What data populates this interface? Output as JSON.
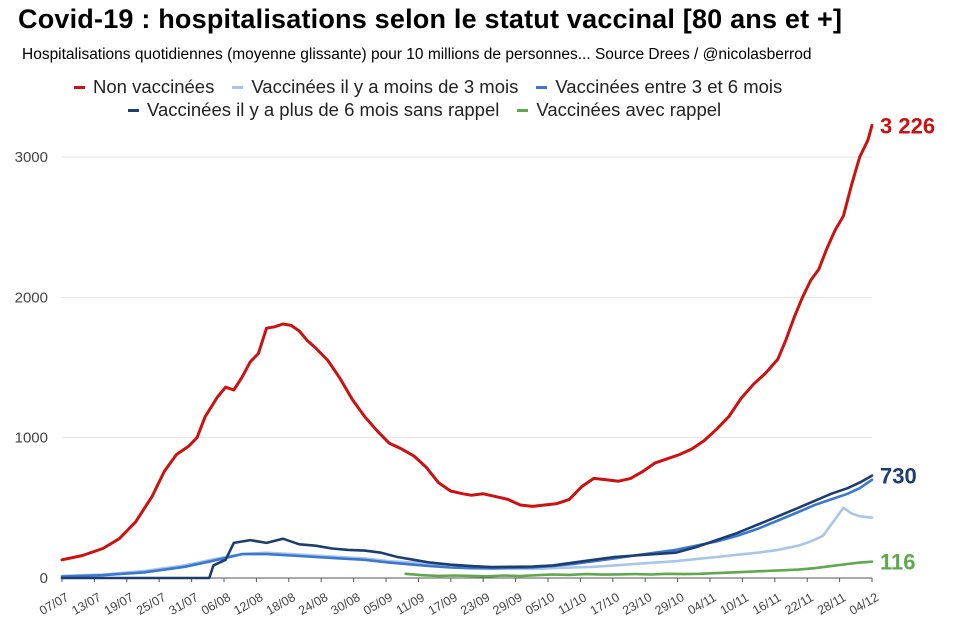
{
  "colors": {
    "non_vaccinees": "#cc1111",
    "vacc_moins_3_mois": "#a9c6ea",
    "vacc_3_6_mois": "#3a78d0",
    "vacc_plus_6_sans_rappel": "#1d3d70",
    "vacc_avec_rappel": "#5fa84d",
    "grid": "#e3e3e3",
    "axis": "#555555"
  },
  "chart_data": {
    "type": "line",
    "title": "Covid-19 : hospitalisations selon le statut vaccinal [80 ans et +]",
    "subtitle": "Hospitalisations quotidiennes (moyenne glissante) pour 10 millions de personnes... Source Drees / @nicolasberrod",
    "xlabel": "",
    "ylabel": "",
    "ylim": [
      0,
      3200
    ],
    "yticks": [
      "0",
      "1000",
      "2000",
      "3000"
    ],
    "yticks_values": [
      0,
      1000,
      2000,
      3000
    ],
    "grid": true,
    "legend_placement": "top",
    "x_tick_labels": [
      "07/07",
      "13/07",
      "19/07",
      "25/07",
      "31/07",
      "06/08",
      "12/08",
      "18/08",
      "24/08",
      "30/08",
      "05/09",
      "11/09",
      "17/09",
      "23/09",
      "29/09",
      "05/10",
      "11/10",
      "17/10",
      "23/10",
      "29/10",
      "04/11",
      "10/11",
      "16/11",
      "22/11",
      "28/11",
      "04/12"
    ],
    "series": [
      {
        "key": "non_vaccinees",
        "name": "Non vaccinées",
        "end_label": "3 226",
        "points": [
          [
            0,
            130
          ],
          [
            5,
            160
          ],
          [
            10,
            210
          ],
          [
            14,
            280
          ],
          [
            18,
            400
          ],
          [
            22,
            580
          ],
          [
            25,
            760
          ],
          [
            28,
            880
          ],
          [
            31,
            940
          ],
          [
            33,
            1000
          ],
          [
            35,
            1150
          ],
          [
            38,
            1290
          ],
          [
            40,
            1360
          ],
          [
            42,
            1340
          ],
          [
            44,
            1430
          ],
          [
            46,
            1540
          ],
          [
            48,
            1600
          ],
          [
            50,
            1780
          ],
          [
            52,
            1790
          ],
          [
            54,
            1810
          ],
          [
            56,
            1800
          ],
          [
            58,
            1760
          ],
          [
            60,
            1690
          ],
          [
            62,
            1640
          ],
          [
            65,
            1550
          ],
          [
            68,
            1420
          ],
          [
            71,
            1270
          ],
          [
            74,
            1150
          ],
          [
            77,
            1050
          ],
          [
            80,
            960
          ],
          [
            83,
            920
          ],
          [
            86,
            870
          ],
          [
            89,
            790
          ],
          [
            92,
            680
          ],
          [
            95,
            620
          ],
          [
            98,
            600
          ],
          [
            100,
            590
          ],
          [
            103,
            600
          ],
          [
            106,
            580
          ],
          [
            109,
            560
          ],
          [
            112,
            520
          ],
          [
            115,
            510
          ],
          [
            118,
            520
          ],
          [
            121,
            530
          ],
          [
            124,
            560
          ],
          [
            127,
            650
          ],
          [
            130,
            710
          ],
          [
            133,
            700
          ],
          [
            136,
            690
          ],
          [
            139,
            710
          ],
          [
            142,
            760
          ],
          [
            145,
            820
          ],
          [
            148,
            850
          ],
          [
            151,
            880
          ],
          [
            154,
            920
          ],
          [
            157,
            980
          ],
          [
            160,
            1060
          ],
          [
            163,
            1150
          ],
          [
            166,
            1280
          ],
          [
            169,
            1380
          ],
          [
            172,
            1460
          ],
          [
            175,
            1560
          ],
          [
            177,
            1700
          ],
          [
            179,
            1860
          ],
          [
            181,
            2000
          ],
          [
            183,
            2120
          ],
          [
            185,
            2200
          ],
          [
            187,
            2350
          ],
          [
            189,
            2480
          ],
          [
            191,
            2580
          ],
          [
            193,
            2800
          ],
          [
            195,
            3000
          ],
          [
            197,
            3120
          ],
          [
            198,
            3226
          ]
        ]
      },
      {
        "key": "vacc_moins_3_mois",
        "name": "Vaccinées il y a moins de 3 mois",
        "points": [
          [
            0,
            15
          ],
          [
            10,
            25
          ],
          [
            20,
            50
          ],
          [
            30,
            90
          ],
          [
            38,
            140
          ],
          [
            44,
            170
          ],
          [
            50,
            180
          ],
          [
            56,
            170
          ],
          [
            62,
            160
          ],
          [
            68,
            150
          ],
          [
            74,
            140
          ],
          [
            80,
            120
          ],
          [
            86,
            110
          ],
          [
            90,
            100
          ],
          [
            95,
            95
          ],
          [
            100,
            85
          ],
          [
            105,
            75
          ],
          [
            110,
            70
          ],
          [
            115,
            65
          ],
          [
            120,
            70
          ],
          [
            125,
            75
          ],
          [
            130,
            80
          ],
          [
            135,
            90
          ],
          [
            140,
            100
          ],
          [
            145,
            110
          ],
          [
            150,
            120
          ],
          [
            155,
            135
          ],
          [
            160,
            150
          ],
          [
            165,
            165
          ],
          [
            170,
            180
          ],
          [
            175,
            200
          ],
          [
            180,
            230
          ],
          [
            183,
            260
          ],
          [
            186,
            300
          ],
          [
            189,
            420
          ],
          [
            191,
            500
          ],
          [
            193,
            460
          ],
          [
            195,
            440
          ],
          [
            198,
            430
          ]
        ]
      },
      {
        "key": "vacc_3_6_mois",
        "name": "Vaccinées entre 3 et 6 mois",
        "points": [
          [
            0,
            10
          ],
          [
            10,
            20
          ],
          [
            20,
            40
          ],
          [
            30,
            80
          ],
          [
            38,
            130
          ],
          [
            44,
            170
          ],
          [
            50,
            170
          ],
          [
            56,
            160
          ],
          [
            62,
            150
          ],
          [
            68,
            140
          ],
          [
            74,
            130
          ],
          [
            80,
            110
          ],
          [
            86,
            95
          ],
          [
            90,
            85
          ],
          [
            95,
            75
          ],
          [
            100,
            70
          ],
          [
            105,
            68
          ],
          [
            110,
            70
          ],
          [
            115,
            75
          ],
          [
            120,
            85
          ],
          [
            125,
            100
          ],
          [
            130,
            120
          ],
          [
            135,
            140
          ],
          [
            140,
            160
          ],
          [
            145,
            180
          ],
          [
            150,
            200
          ],
          [
            155,
            230
          ],
          [
            160,
            260
          ],
          [
            165,
            300
          ],
          [
            170,
            350
          ],
          [
            175,
            410
          ],
          [
            180,
            470
          ],
          [
            184,
            520
          ],
          [
            188,
            560
          ],
          [
            192,
            600
          ],
          [
            195,
            640
          ],
          [
            198,
            700
          ]
        ]
      },
      {
        "key": "vacc_plus_6_sans_rappel",
        "name": "Vaccinées il y a plus de 6 mois sans rappel",
        "points": [
          [
            0,
            0
          ],
          [
            36,
            0
          ],
          [
            37,
            90
          ],
          [
            40,
            130
          ],
          [
            42,
            250
          ],
          [
            46,
            270
          ],
          [
            50,
            250
          ],
          [
            54,
            280
          ],
          [
            58,
            240
          ],
          [
            62,
            230
          ],
          [
            66,
            210
          ],
          [
            70,
            200
          ],
          [
            74,
            195
          ],
          [
            78,
            180
          ],
          [
            82,
            150
          ],
          [
            86,
            130
          ],
          [
            90,
            110
          ],
          [
            95,
            95
          ],
          [
            100,
            85
          ],
          [
            105,
            78
          ],
          [
            110,
            80
          ],
          [
            115,
            82
          ],
          [
            120,
            90
          ],
          [
            125,
            110
          ],
          [
            130,
            130
          ],
          [
            135,
            150
          ],
          [
            140,
            160
          ],
          [
            145,
            170
          ],
          [
            150,
            180
          ],
          [
            155,
            220
          ],
          [
            160,
            270
          ],
          [
            165,
            320
          ],
          [
            170,
            380
          ],
          [
            175,
            440
          ],
          [
            180,
            500
          ],
          [
            184,
            550
          ],
          [
            188,
            600
          ],
          [
            192,
            640
          ],
          [
            195,
            680
          ],
          [
            198,
            730
          ]
        ]
      },
      {
        "key": "vacc_avec_rappel",
        "name": "Vaccinées avec rappel",
        "end_label": "116",
        "points": [
          [
            84,
            30
          ],
          [
            88,
            20
          ],
          [
            92,
            15
          ],
          [
            96,
            18
          ],
          [
            100,
            15
          ],
          [
            104,
            12
          ],
          [
            108,
            18
          ],
          [
            112,
            14
          ],
          [
            116,
            20
          ],
          [
            120,
            25
          ],
          [
            124,
            22
          ],
          [
            128,
            28
          ],
          [
            132,
            24
          ],
          [
            136,
            26
          ],
          [
            140,
            28
          ],
          [
            144,
            25
          ],
          [
            148,
            30
          ],
          [
            152,
            28
          ],
          [
            156,
            30
          ],
          [
            160,
            35
          ],
          [
            164,
            40
          ],
          [
            168,
            45
          ],
          [
            172,
            50
          ],
          [
            176,
            55
          ],
          [
            180,
            60
          ],
          [
            184,
            70
          ],
          [
            188,
            85
          ],
          [
            192,
            100
          ],
          [
            195,
            110
          ],
          [
            198,
            116
          ]
        ]
      }
    ],
    "end_labels": [
      {
        "key": "non_vaccinees",
        "text": "3 226",
        "value": 3226
      },
      {
        "key": "vacc_plus_6_sans_rappel",
        "text": "730",
        "value": 730
      },
      {
        "key": "vacc_avec_rappel",
        "text": "116",
        "value": 116
      }
    ]
  }
}
